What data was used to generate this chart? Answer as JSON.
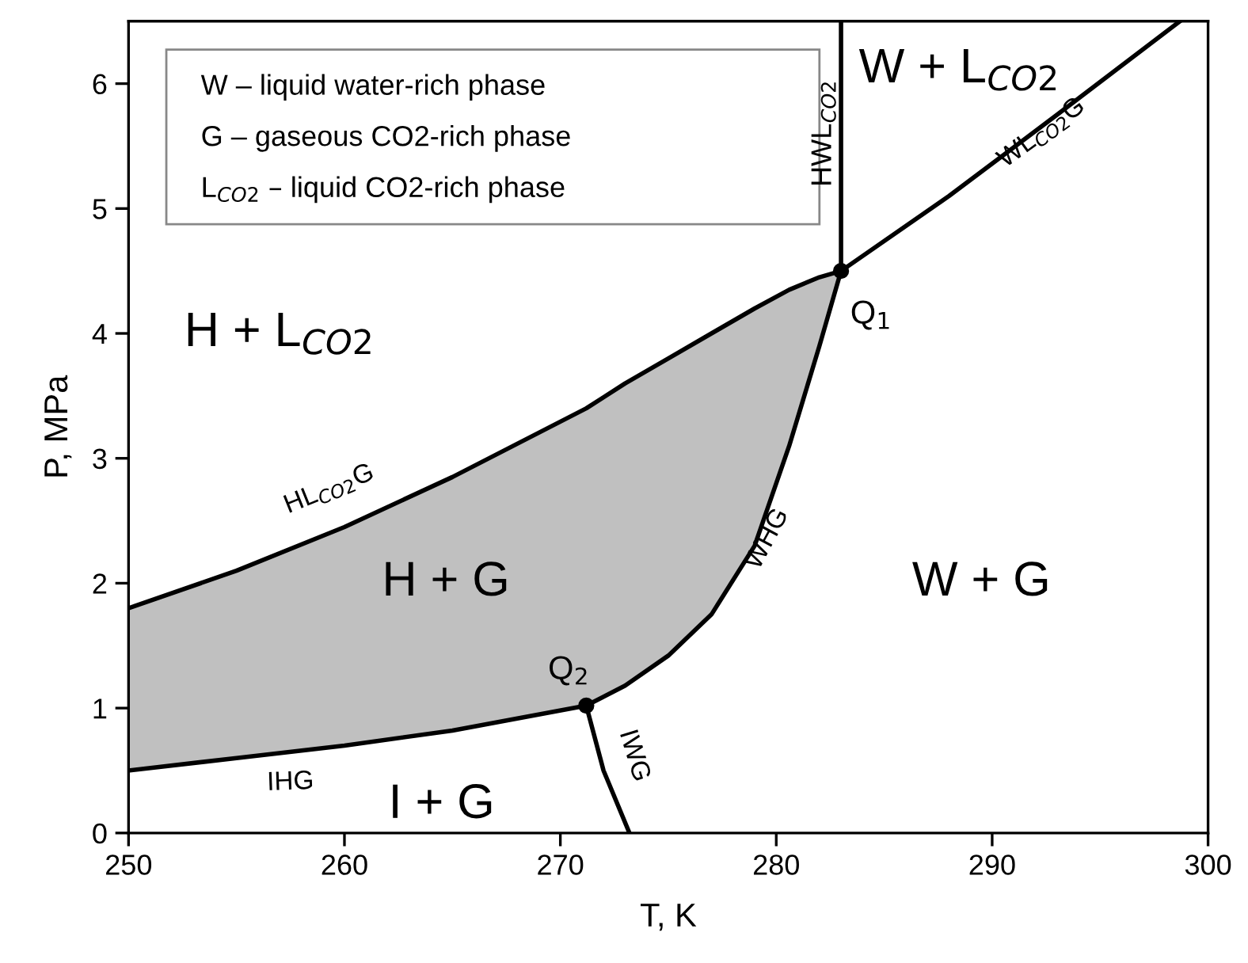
{
  "chart_data": {
    "type": "line",
    "xlabel": "T, K",
    "ylabel": "P, MPa",
    "xlim": [
      250,
      300
    ],
    "ylim": [
      0,
      6.5
    ],
    "xticks": [
      250,
      260,
      270,
      280,
      290,
      300
    ],
    "yticks": [
      0,
      1,
      2,
      3,
      4,
      5,
      6
    ],
    "grid": false,
    "series": [
      {
        "color": "#000000",
        "x": [
          250,
          255,
          260,
          265,
          271.2,
          273,
          275,
          277,
          279,
          280.6,
          282,
          283
        ],
        "values": [
          1.8,
          2.1,
          2.45,
          2.85,
          3.4,
          3.6,
          3.8,
          4.0,
          4.2,
          4.35,
          4.45,
          4.5
        ],
        "upper": [
          1.8,
          2.1,
          2.45,
          2.85,
          3.4,
          3.6,
          3.8,
          4.0,
          4.2,
          4.35,
          4.45,
          4.5
        ],
        "lower": [
          0.5,
          0.6,
          0.7,
          0.82,
          1.02,
          1.18,
          1.42,
          1.75,
          2.3,
          3.1,
          3.9,
          4.5
        ]
      },
      {
        "color": "#000000",
        "x": [
          283,
          288,
          293,
          298.7
        ],
        "values": [
          4.5,
          5.1,
          5.75,
          6.5
        ]
      },
      {
        "color": "#000000",
        "x": [
          283,
          283
        ],
        "values": [
          4.5,
          6.5
        ]
      },
      {
        "color": "#000000",
        "x": [
          271.2,
          273,
          275,
          277,
          279,
          280.6,
          282,
          283
        ],
        "values": [
          1.02,
          1.18,
          1.42,
          1.75,
          2.3,
          3.1,
          3.9,
          4.5
        ]
      },
      {
        "color": "#000000",
        "x": [
          250,
          255,
          260,
          265,
          271.2
        ],
        "values": [
          0.5,
          0.6,
          0.7,
          0.82,
          1.02
        ]
      },
      {
        "color": "#000000",
        "x": [
          271.2,
          272,
          273.2
        ],
        "values": [
          1.02,
          0.5,
          0
        ]
      },
      {
        "type": "scatter",
        "color": "#000000",
        "marker": "circle",
        "x": [
          283,
          271.2
        ],
        "values": [
          4.5,
          1.02
        ]
      }
    ],
    "annotations": [
      "W – liquid water-rich phase",
      "G – gaseous CO2-rich phase",
      "L$_{CO2}$ – liquid CO2-rich phase",
      "H + L$_{CO2}$",
      "W + L$_{CO2}$",
      "H + G",
      "W + G",
      "I + G",
      "HL$_{CO2}$G",
      "WL$_{CO2}$G",
      "HWL$_{CO2}$",
      "WHG",
      "IHG",
      "IWG",
      "Q$_{1}$",
      "Q$_{2}$"
    ]
  }
}
